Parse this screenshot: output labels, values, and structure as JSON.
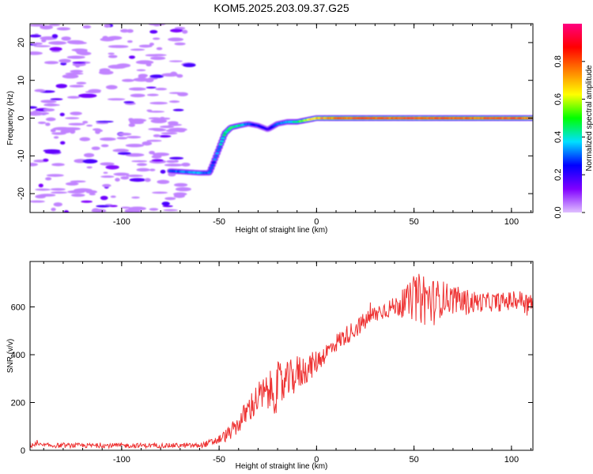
{
  "figure": {
    "title": "KOM5.2025.203.09.37.G25"
  },
  "chart_data": [
    {
      "type": "heatmap",
      "xlabel": "Height of straight line (km)",
      "ylabel": "Frequency (Hz)",
      "xlim": [
        -147,
        111
      ],
      "ylim": [
        -25,
        25
      ],
      "x_ticks": [
        -100,
        -50,
        0,
        50,
        100
      ],
      "y_ticks": [
        -20,
        -10,
        0,
        10,
        20
      ],
      "colorbar": {
        "label": "Normalized spectral amplitude",
        "range": [
          0,
          1
        ],
        "ticks": [
          0.0,
          0.2,
          0.4,
          0.6,
          0.8
        ],
        "tick_labels": [
          "0.0",
          "0.2",
          "0.4",
          "0.6",
          "0.8"
        ],
        "colormap": [
          "#e0c0ff",
          "#8000ff",
          "#0000ff",
          "#00e0ff",
          "#00ff00",
          "#ffff00",
          "#ff8000",
          "#ff0000",
          "#ff0080"
        ]
      },
      "ridge": {
        "x": [
          -75,
          -60,
          -55,
          -53,
          -50,
          -47,
          -44,
          -40,
          -35,
          -30,
          -25,
          -20,
          -15,
          -10,
          -5,
          0,
          10,
          20,
          30,
          40,
          50,
          60,
          70,
          80,
          90,
          100,
          111
        ],
        "frequency": [
          -14,
          -14.5,
          -14.5,
          -12,
          -8,
          -4,
          -2.5,
          -2,
          -1.5,
          -2,
          -3,
          -1.5,
          -1,
          -1,
          -0.5,
          0,
          0,
          0,
          0,
          0,
          0,
          0,
          0,
          0,
          0,
          0,
          0
        ],
        "amplitude": [
          0.3,
          0.35,
          0.3,
          0.3,
          0.35,
          0.45,
          0.5,
          0.45,
          0.3,
          0.25,
          0.2,
          0.3,
          0.35,
          0.45,
          0.6,
          0.7,
          0.8,
          0.85,
          0.85,
          0.85,
          0.9,
          0.85,
          0.85,
          0.8,
          0.85,
          0.85,
          0.8
        ]
      },
      "noise_region_x": [
        -147,
        -65
      ]
    },
    {
      "type": "line",
      "xlabel": "Height of straight line (km)",
      "ylabel": "SNR (v/v)",
      "xlim": [
        -147,
        111
      ],
      "ylim": [
        0,
        790
      ],
      "x_ticks": [
        -100,
        -50,
        0,
        50,
        100
      ],
      "y_ticks": [
        0,
        200,
        400,
        600
      ],
      "line_color": "#ee3333",
      "series": [
        {
          "x": [
            -147,
            -140,
            -130,
            -120,
            -110,
            -100,
            -90,
            -80,
            -70,
            -60,
            -55,
            -50,
            -45,
            -40,
            -35,
            -30,
            -25,
            -20,
            -15,
            -10,
            -5,
            0,
            5,
            10,
            15,
            20,
            25,
            30,
            35,
            40,
            45,
            50,
            55,
            60,
            65,
            70,
            75,
            80,
            85,
            90,
            95,
            100,
            105,
            111
          ],
          "values": [
            25,
            20,
            20,
            20,
            20,
            20,
            20,
            20,
            20,
            20,
            30,
            45,
            70,
            110,
            170,
            220,
            240,
            260,
            290,
            320,
            340,
            370,
            410,
            450,
            480,
            510,
            540,
            570,
            590,
            600,
            620,
            630,
            640,
            620,
            640,
            630,
            620,
            620,
            620,
            620,
            620,
            625,
            630,
            610
          ],
          "noise_amplitude": [
            15,
            10,
            10,
            10,
            10,
            10,
            10,
            10,
            10,
            10,
            15,
            20,
            30,
            40,
            60,
            70,
            80,
            110,
            80,
            80,
            60,
            50,
            40,
            40,
            40,
            40,
            40,
            40,
            40,
            40,
            60,
            90,
            120,
            100,
            70,
            60,
            60,
            50,
            40,
            40,
            40,
            40,
            40,
            40
          ]
        }
      ]
    }
  ]
}
